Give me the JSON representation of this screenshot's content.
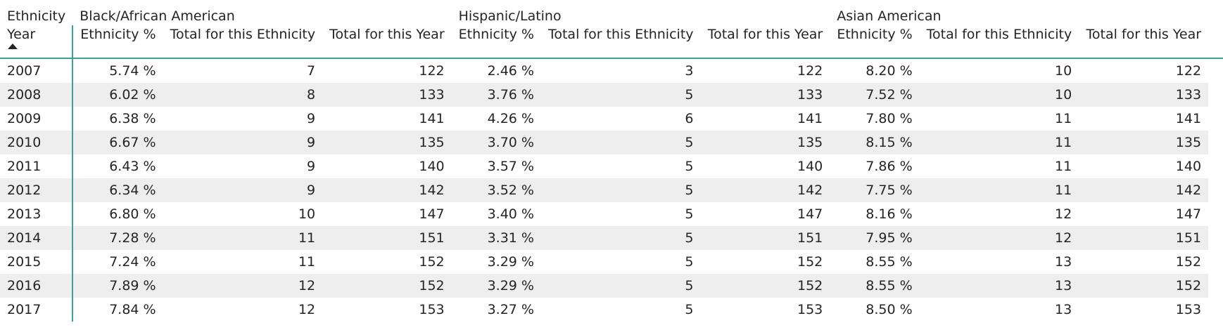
{
  "matrix": {
    "corner_top": "Ethnicity",
    "corner_bottom": "Year",
    "groups": [
      {
        "name": "Black/African American"
      },
      {
        "name": "Hispanic/Latino"
      },
      {
        "name": "Asian American"
      }
    ],
    "measures": [
      "Ethnicity %",
      "Total for this Ethnicity",
      "Total for this Year"
    ],
    "sort": {
      "column": "Year",
      "direction": "ascending",
      "icon": "sort-ascending-icon"
    },
    "accent_color": "#3aa394",
    "stripe_color": "#eeeeee",
    "rows": [
      {
        "year": "2007",
        "cells": [
          "5.74 %",
          "7",
          "122",
          "2.46 %",
          "3",
          "122",
          "8.20 %",
          "10",
          "122"
        ]
      },
      {
        "year": "2008",
        "cells": [
          "6.02 %",
          "8",
          "133",
          "3.76 %",
          "5",
          "133",
          "7.52 %",
          "10",
          "133"
        ]
      },
      {
        "year": "2009",
        "cells": [
          "6.38 %",
          "9",
          "141",
          "4.26 %",
          "6",
          "141",
          "7.80 %",
          "11",
          "141"
        ]
      },
      {
        "year": "2010",
        "cells": [
          "6.67 %",
          "9",
          "135",
          "3.70 %",
          "5",
          "135",
          "8.15 %",
          "11",
          "135"
        ]
      },
      {
        "year": "2011",
        "cells": [
          "6.43 %",
          "9",
          "140",
          "3.57 %",
          "5",
          "140",
          "7.86 %",
          "11",
          "140"
        ]
      },
      {
        "year": "2012",
        "cells": [
          "6.34 %",
          "9",
          "142",
          "3.52 %",
          "5",
          "142",
          "7.75 %",
          "11",
          "142"
        ]
      },
      {
        "year": "2013",
        "cells": [
          "6.80 %",
          "10",
          "147",
          "3.40 %",
          "5",
          "147",
          "8.16 %",
          "12",
          "147"
        ]
      },
      {
        "year": "2014",
        "cells": [
          "7.28 %",
          "11",
          "151",
          "3.31 %",
          "5",
          "151",
          "7.95 %",
          "12",
          "151"
        ]
      },
      {
        "year": "2015",
        "cells": [
          "7.24 %",
          "11",
          "152",
          "3.29 %",
          "5",
          "152",
          "8.55 %",
          "13",
          "152"
        ]
      },
      {
        "year": "2016",
        "cells": [
          "7.89 %",
          "12",
          "152",
          "3.29 %",
          "5",
          "152",
          "8.55 %",
          "13",
          "152"
        ]
      },
      {
        "year": "2017",
        "cells": [
          "7.84 %",
          "12",
          "153",
          "3.27 %",
          "5",
          "153",
          "8.50 %",
          "13",
          "153"
        ]
      }
    ]
  }
}
